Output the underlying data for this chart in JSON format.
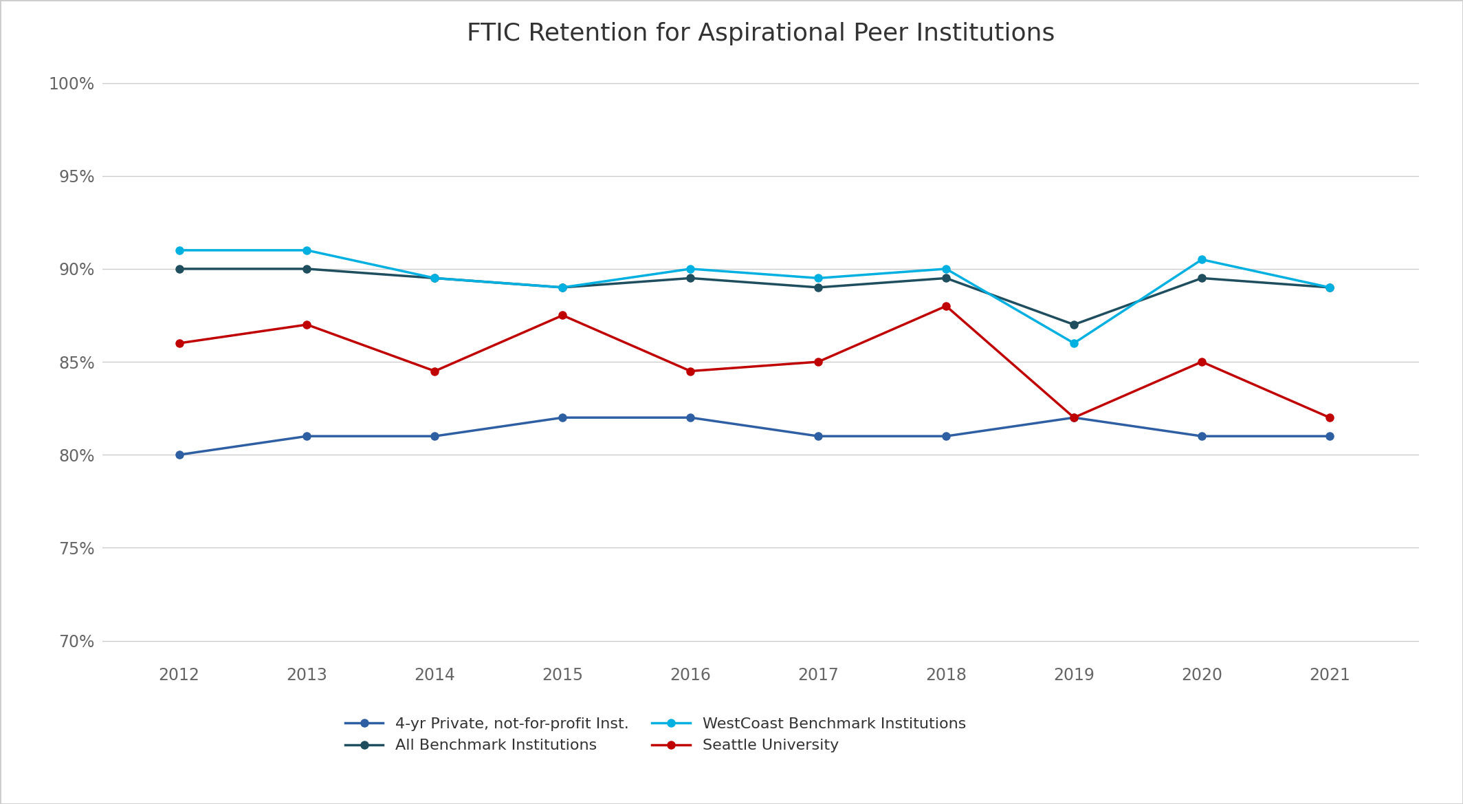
{
  "title": "FTIC Retention for Aspirational Peer Institutions",
  "years": [
    2012,
    2013,
    2014,
    2015,
    2016,
    2017,
    2018,
    2019,
    2020,
    2021
  ],
  "series": [
    {
      "name": "4-yr Private, not-for-profit Inst.",
      "values": [
        80.0,
        81.0,
        81.0,
        82.0,
        82.0,
        81.0,
        81.0,
        82.0,
        81.0,
        81.0
      ],
      "color": "#2E5FA3",
      "marker": "o",
      "linewidth": 2.5,
      "markersize": 8,
      "zorder": 3
    },
    {
      "name": "All Benchmark Institutions",
      "values": [
        90.0,
        90.0,
        89.5,
        89.0,
        89.5,
        89.0,
        89.5,
        87.0,
        89.5,
        89.0
      ],
      "color": "#1F4E5F",
      "marker": "o",
      "linewidth": 2.5,
      "markersize": 8,
      "zorder": 4
    },
    {
      "name": "WestCoast Benchmark Institutions",
      "values": [
        91.0,
        91.0,
        89.5,
        89.0,
        90.0,
        89.5,
        90.0,
        86.0,
        90.5,
        89.0
      ],
      "color": "#00B0E0",
      "marker": "o",
      "linewidth": 2.5,
      "markersize": 8,
      "zorder": 5
    },
    {
      "name": "Seattle University",
      "values": [
        86.0,
        87.0,
        84.5,
        87.5,
        84.5,
        85.0,
        88.0,
        82.0,
        85.0,
        82.0
      ],
      "color": "#C00000",
      "marker": "o",
      "linewidth": 2.5,
      "markersize": 8,
      "zorder": 6
    }
  ],
  "ylim": [
    69,
    101
  ],
  "yticks": [
    70,
    75,
    80,
    85,
    90,
    95,
    100
  ],
  "ytick_labels": [
    "70%",
    "75%",
    "80%",
    "85%",
    "90%",
    "95%",
    "100%"
  ],
  "background_color": "#FFFFFF",
  "grid_color": "#CCCCCC",
  "title_fontsize": 26,
  "tick_fontsize": 17,
  "legend_fontsize": 16,
  "border_color": "#CCCCCC"
}
